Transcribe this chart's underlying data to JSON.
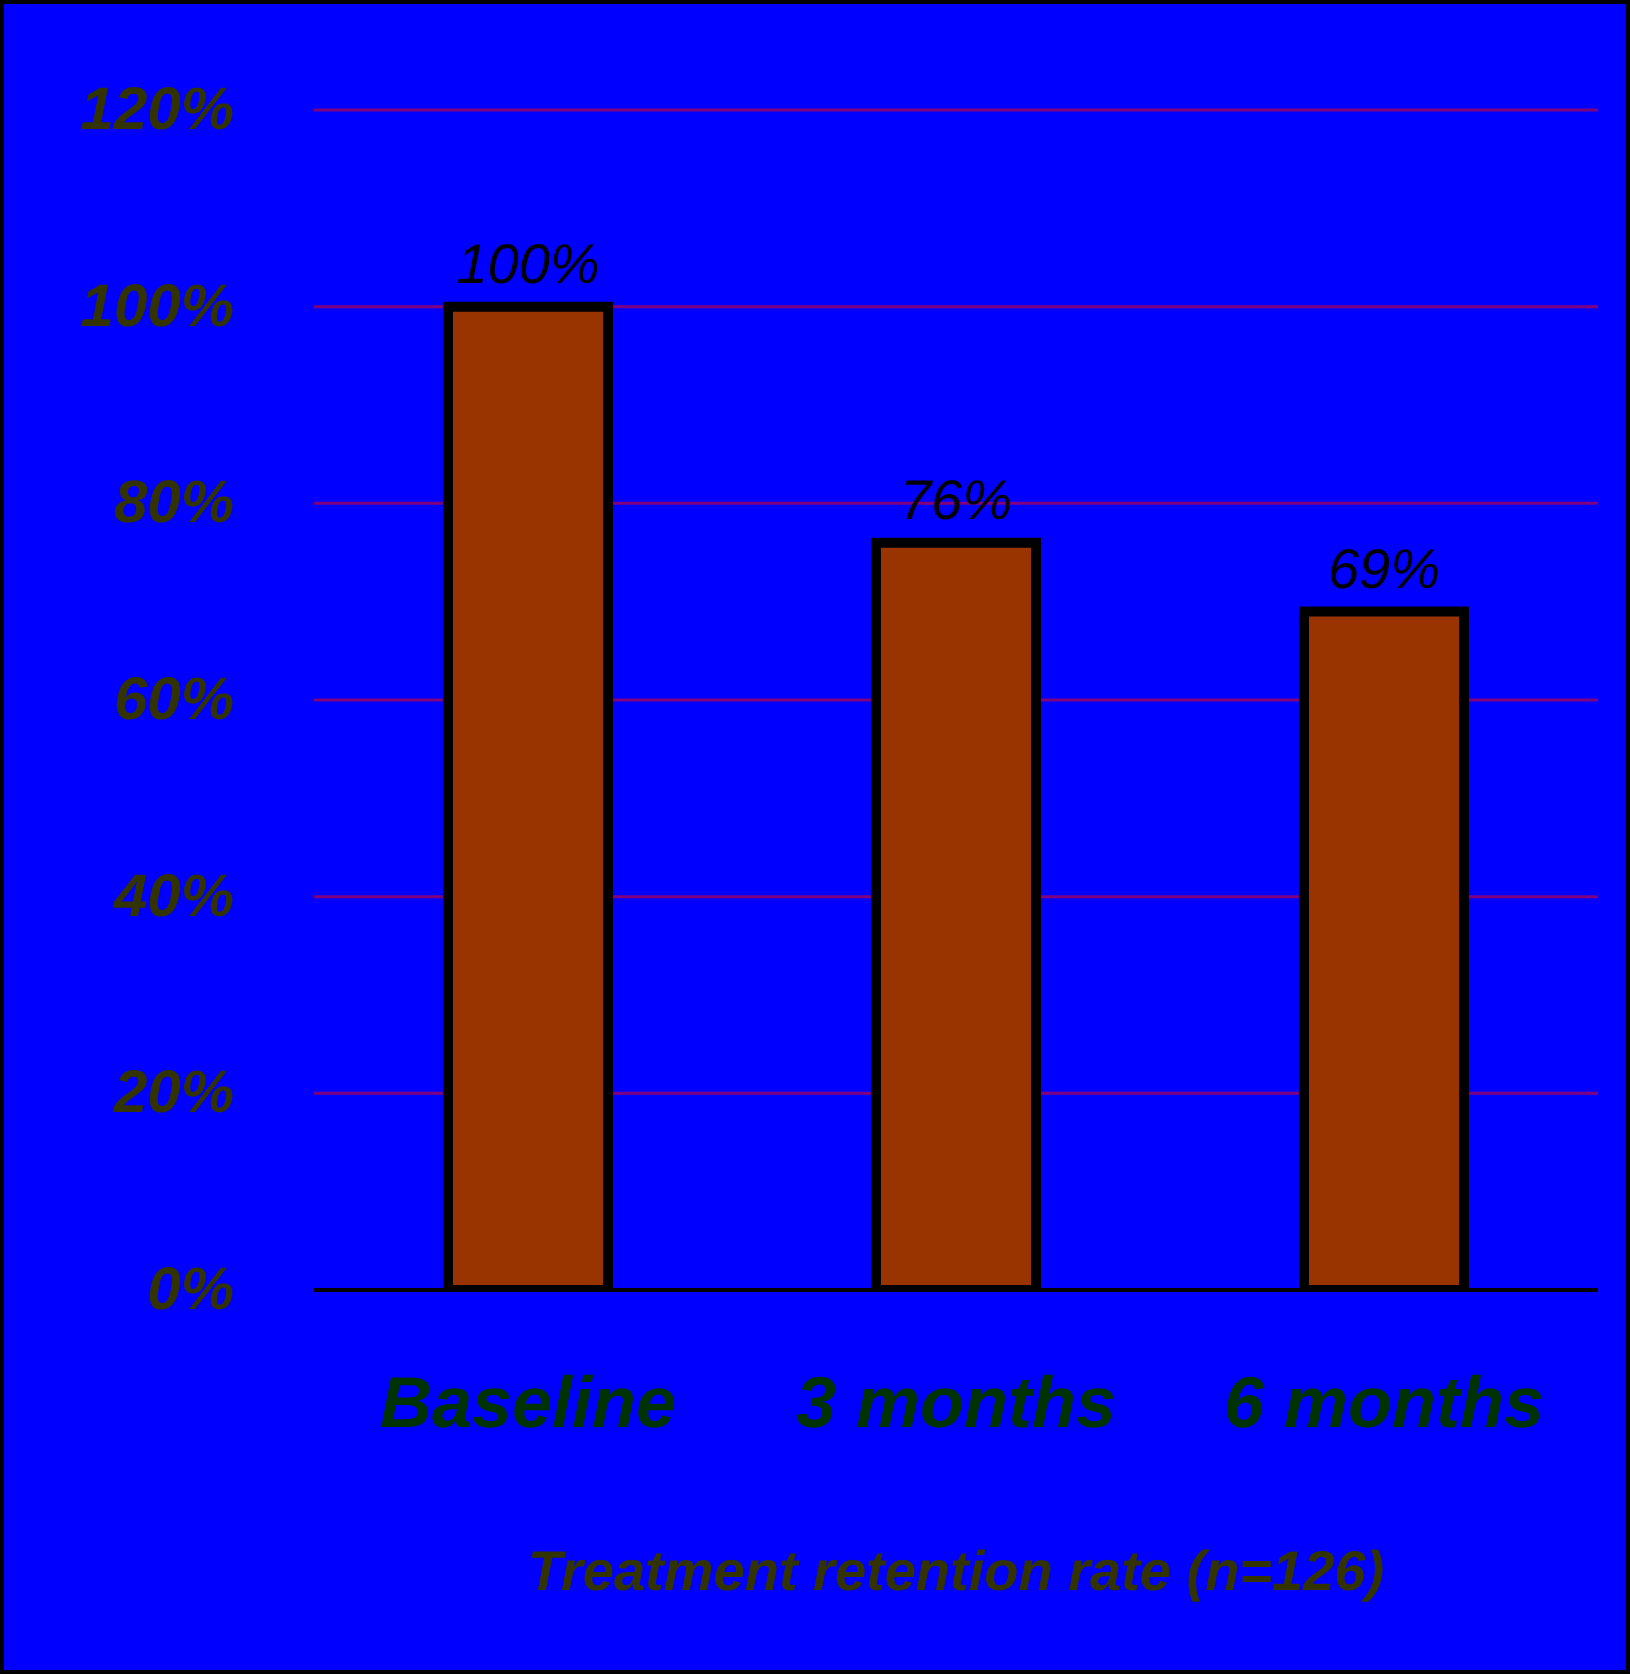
{
  "chart_data": {
    "type": "bar",
    "xlabel": "Treatment retention rate (n=126)",
    "categories": [
      "Baseline",
      "3 months",
      "6 months"
    ],
    "values": [
      100,
      76,
      69
    ],
    "value_labels": [
      "100%",
      "76%",
      "69%"
    ],
    "color": "#993300",
    "ylim": [
      0,
      120
    ],
    "yticks": [
      {
        "value": 0,
        "label": "0%"
      },
      {
        "value": 20,
        "label": "20%"
      },
      {
        "value": 40,
        "label": "40%"
      },
      {
        "value": 60,
        "label": "60%"
      },
      {
        "value": 80,
        "label": "80%"
      },
      {
        "value": 100,
        "label": "100%"
      },
      {
        "value": 120,
        "label": "120%"
      }
    ],
    "grid": "y"
  }
}
